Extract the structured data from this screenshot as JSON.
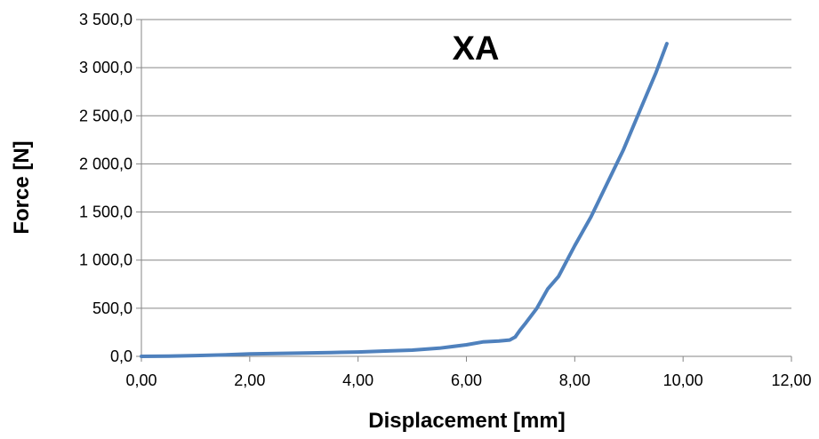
{
  "chart_data": {
    "type": "line",
    "title": "XA",
    "xlabel": "Displacement  [mm]",
    "ylabel": "Force [N]",
    "xlim": [
      0,
      12
    ],
    "ylim": [
      0,
      3500
    ],
    "x_tick_labels": [
      "0,00",
      "2,00",
      "4,00",
      "6,00",
      "8,00",
      "10,00",
      "12,00"
    ],
    "y_tick_labels": [
      "0,0",
      "500,0",
      "1 000,0",
      "1 500,0",
      "2 000,0",
      "2 500,0",
      "3 000,0",
      "3 500,0"
    ],
    "grid": true,
    "legend": false,
    "series": [
      {
        "color": "#4f81bd",
        "x": [
          0.0,
          0.5,
          1.0,
          1.5,
          2.0,
          2.5,
          3.0,
          3.5,
          4.0,
          4.5,
          5.0,
          5.5,
          6.0,
          6.3,
          6.6,
          6.8,
          6.9,
          7.0,
          7.1,
          7.3,
          7.5,
          7.7,
          8.0,
          8.3,
          8.6,
          8.9,
          9.2,
          9.5,
          9.7
        ],
        "y": [
          0,
          2,
          8,
          15,
          25,
          30,
          35,
          40,
          45,
          55,
          65,
          85,
          120,
          150,
          160,
          170,
          200,
          280,
          350,
          500,
          700,
          830,
          1150,
          1450,
          1800,
          2150,
          2550,
          2950,
          3250
        ]
      }
    ]
  }
}
